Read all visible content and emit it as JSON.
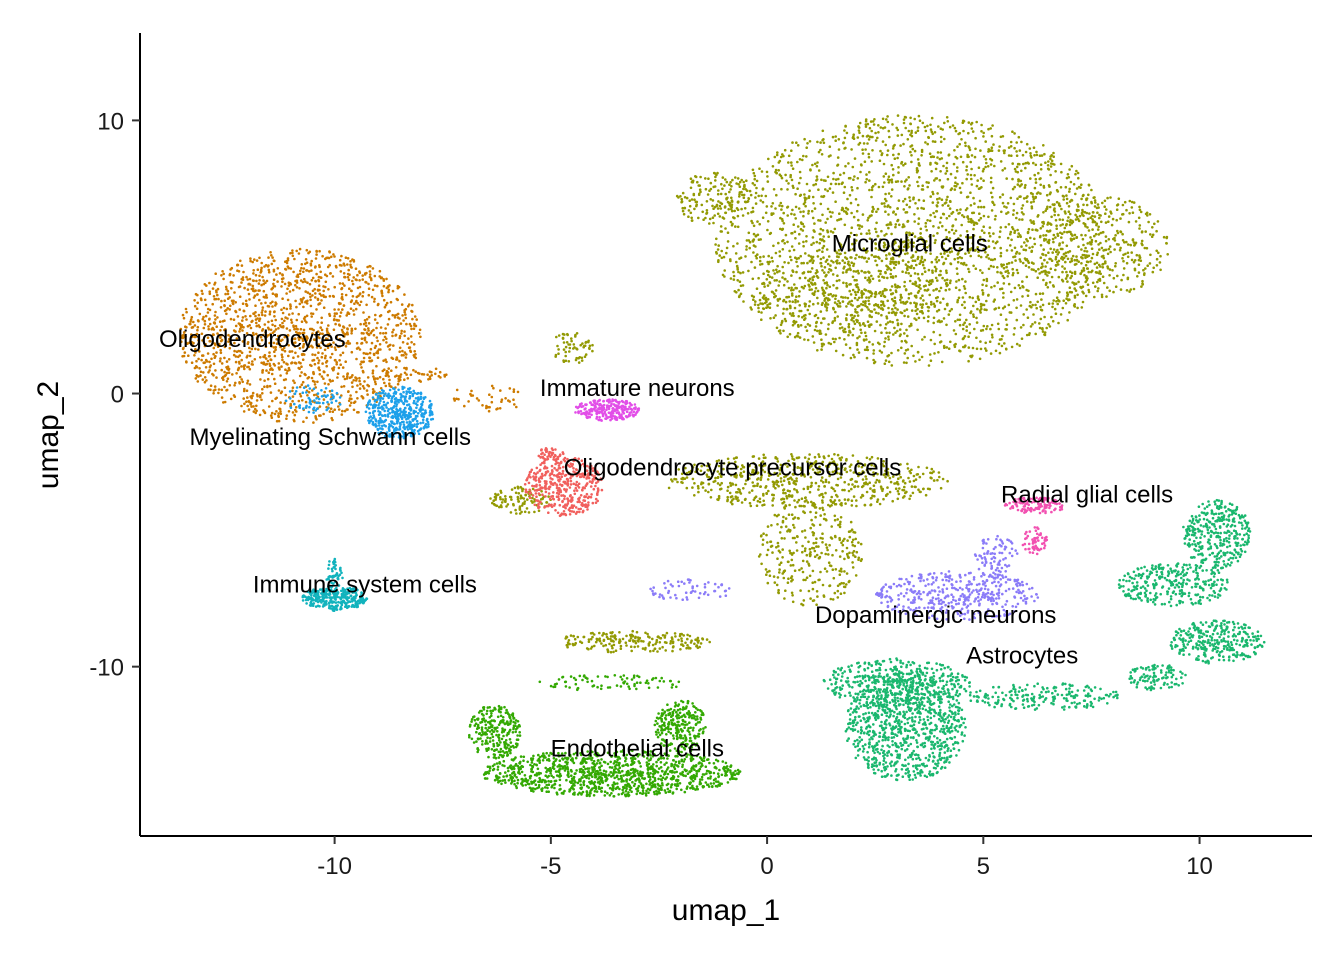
{
  "chart_data": {
    "type": "scatter",
    "title": "",
    "xlabel": "umap_1",
    "ylabel": "umap_2",
    "xlim": [
      -14.5,
      12.6
    ],
    "ylim": [
      -16.2,
      13.2
    ],
    "x_ticks": [
      -10,
      -5,
      0,
      5,
      10
    ],
    "x_tick_labels": [
      "-10",
      "-5",
      "0",
      "5",
      "10"
    ],
    "y_ticks": [
      -10,
      0,
      10
    ],
    "y_tick_labels": [
      "-10",
      "0",
      "10"
    ],
    "grid": false,
    "legend": "none",
    "clusters": [
      {
        "name": "Microglial cells",
        "label_x": 3.3,
        "label_y": 5.5,
        "color": "#939a03",
        "regions": [
          {
            "cx": 3.4,
            "cy": 5.6,
            "rx": 4.6,
            "ry": 4.6,
            "n": 2400
          },
          {
            "cx": 2.0,
            "cy": 3.7,
            "rx": 2.2,
            "ry": 1.6,
            "n": 350
          },
          {
            "cx": 7.6,
            "cy": 5.4,
            "rx": 1.7,
            "ry": 1.9,
            "n": 350
          },
          {
            "cx": -1.2,
            "cy": 7.1,
            "rx": 0.9,
            "ry": 1.0,
            "n": 150
          },
          {
            "cx": 0.9,
            "cy": -3.2,
            "rx": 3.3,
            "ry": 1.0,
            "n": 600
          },
          {
            "cx": 1.0,
            "cy": -5.8,
            "rx": 1.2,
            "ry": 2.0,
            "n": 300
          },
          {
            "cx": -3.1,
            "cy": -9.1,
            "rx": 1.8,
            "ry": 0.4,
            "n": 200
          },
          {
            "cx": -5.7,
            "cy": -3.9,
            "rx": 0.7,
            "ry": 0.5,
            "n": 100
          },
          {
            "cx": -4.5,
            "cy": 1.7,
            "rx": 0.5,
            "ry": 0.6,
            "n": 60
          }
        ]
      },
      {
        "name": "Oligodendrocytes",
        "label_x": -11.9,
        "label_y": 2.0,
        "color": "#cd7b00",
        "regions": [
          {
            "cx": -10.8,
            "cy": 2.1,
            "rx": 2.8,
            "ry": 3.2,
            "n": 1600
          },
          {
            "cx": -8.2,
            "cy": 0.7,
            "rx": 0.8,
            "ry": 0.3,
            "n": 40
          },
          {
            "cx": -6.5,
            "cy": -0.2,
            "rx": 0.9,
            "ry": 0.5,
            "n": 40
          }
        ]
      },
      {
        "name": "Myelinating Schwann cells",
        "label_x": -10.1,
        "label_y": -1.6,
        "color": "#1da0ea",
        "regions": [
          {
            "cx": -8.5,
            "cy": -0.7,
            "rx": 0.8,
            "ry": 0.95,
            "n": 450
          },
          {
            "cx": -10.5,
            "cy": -0.2,
            "rx": 0.7,
            "ry": 0.5,
            "n": 60
          }
        ]
      },
      {
        "name": "Immature neurons",
        "label_x": -3.0,
        "label_y": 0.2,
        "color": "#e24ee8",
        "regions": [
          {
            "cx": -3.7,
            "cy": -0.6,
            "rx": 0.75,
            "ry": 0.4,
            "n": 250
          }
        ]
      },
      {
        "name": "Oligodendrocyte precursor cells",
        "label_x": -0.8,
        "label_y": -2.7,
        "color": "#f1605d",
        "regions": [
          {
            "cx": -4.7,
            "cy": -3.4,
            "rx": 0.9,
            "ry": 1.1,
            "n": 400
          },
          {
            "cx": -5.0,
            "cy": -2.2,
            "rx": 0.3,
            "ry": 0.3,
            "n": 40
          }
        ]
      },
      {
        "name": "Radial glial cells",
        "label_x": 7.4,
        "label_y": -3.7,
        "color": "#f251b1",
        "regions": [
          {
            "cx": 6.2,
            "cy": -4.1,
            "rx": 0.7,
            "ry": 0.3,
            "n": 120
          },
          {
            "cx": 6.2,
            "cy": -5.4,
            "rx": 0.3,
            "ry": 0.5,
            "n": 60
          }
        ]
      },
      {
        "name": "Immune system cells",
        "label_x": -9.3,
        "label_y": -7.0,
        "color": "#12b3bd",
        "regions": [
          {
            "cx": -10.0,
            "cy": -7.5,
            "rx": 0.75,
            "ry": 0.45,
            "n": 300
          },
          {
            "cx": -10.0,
            "cy": -6.6,
            "rx": 0.2,
            "ry": 0.6,
            "n": 50
          }
        ]
      },
      {
        "name": "Dopaminergic neurons",
        "label_x": 3.9,
        "label_y": -8.1,
        "color": "#8b7cf8",
        "regions": [
          {
            "cx": 4.4,
            "cy": -7.4,
            "rx": 1.9,
            "ry": 0.9,
            "n": 400
          },
          {
            "cx": 5.3,
            "cy": -6.0,
            "rx": 0.5,
            "ry": 0.8,
            "n": 80
          },
          {
            "cx": -1.8,
            "cy": -7.2,
            "rx": 1.0,
            "ry": 0.4,
            "n": 60
          }
        ]
      },
      {
        "name": "Astrocytes",
        "label_x": 5.9,
        "label_y": -9.6,
        "color": "#1ab76e",
        "regions": [
          {
            "cx": 3.2,
            "cy": -12.2,
            "rx": 1.4,
            "ry": 2.0,
            "n": 900
          },
          {
            "cx": 3.0,
            "cy": -10.6,
            "rx": 1.7,
            "ry": 0.9,
            "n": 400
          },
          {
            "cx": 6.4,
            "cy": -11.1,
            "rx": 1.8,
            "ry": 0.5,
            "n": 200
          },
          {
            "cx": 10.4,
            "cy": -5.2,
            "rx": 0.8,
            "ry": 1.3,
            "n": 350
          },
          {
            "cx": 9.4,
            "cy": -7.0,
            "rx": 1.3,
            "ry": 0.8,
            "n": 300
          },
          {
            "cx": 10.4,
            "cy": -9.1,
            "rx": 1.1,
            "ry": 0.8,
            "n": 300
          },
          {
            "cx": 9.0,
            "cy": -10.4,
            "rx": 0.7,
            "ry": 0.5,
            "n": 100
          }
        ]
      },
      {
        "name": "Endothelial cells",
        "label_x": -3.0,
        "label_y": -13.0,
        "color": "#34a903",
        "regions": [
          {
            "cx": -3.6,
            "cy": -13.9,
            "rx": 3.0,
            "ry": 0.85,
            "n": 1100
          },
          {
            "cx": -6.3,
            "cy": -12.4,
            "rx": 0.6,
            "ry": 1.0,
            "n": 250
          },
          {
            "cx": -2.0,
            "cy": -12.2,
            "rx": 0.6,
            "ry": 1.0,
            "n": 250
          },
          {
            "cx": -3.6,
            "cy": -10.6,
            "rx": 1.7,
            "ry": 0.3,
            "n": 80
          }
        ]
      }
    ]
  }
}
